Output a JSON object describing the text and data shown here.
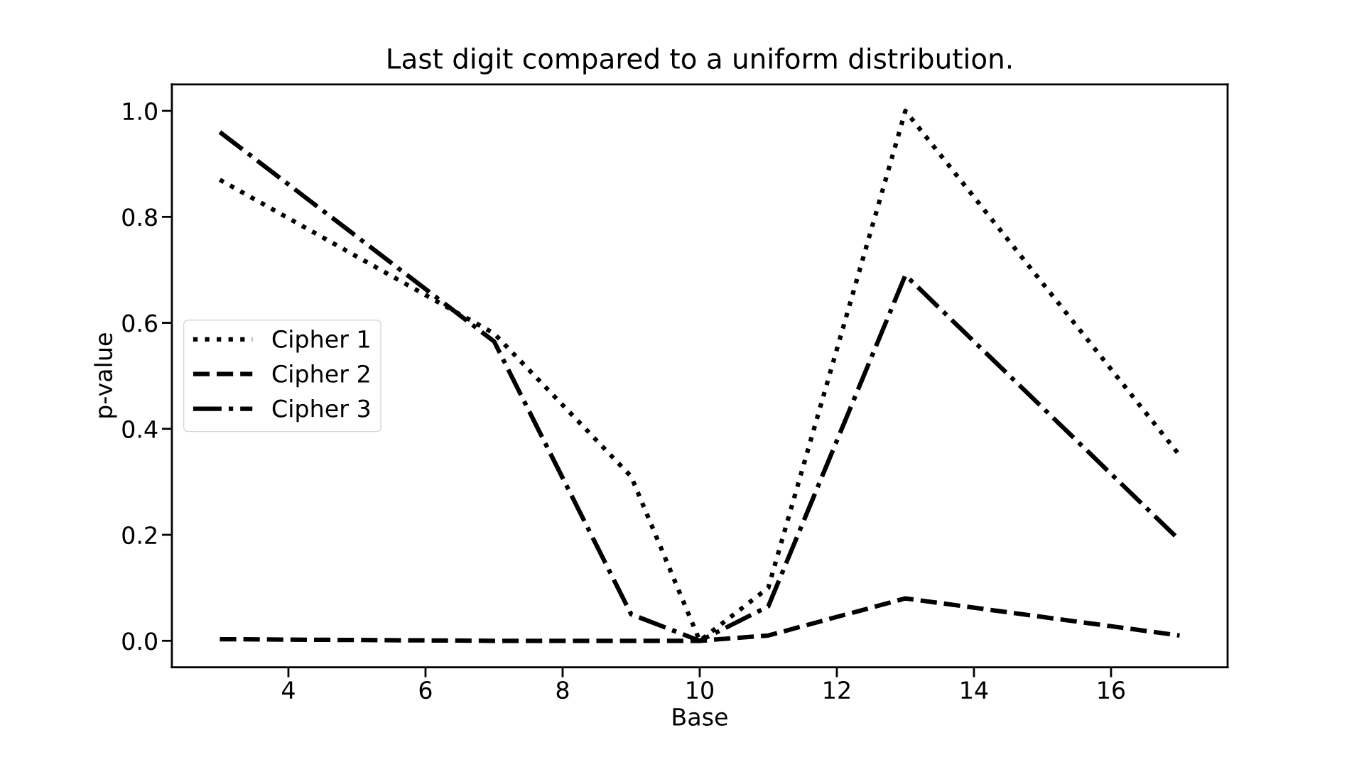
{
  "chart_data": {
    "type": "line",
    "title": "Last digit compared to a uniform distribution.",
    "xlabel": "Base",
    "ylabel": "p-value",
    "x": [
      3,
      7,
      9,
      10,
      11,
      13,
      17
    ],
    "series": [
      {
        "name": "Cipher 1",
        "color": "#000000",
        "line_style": "dotted",
        "values": [
          0.87,
          0.58,
          0.31,
          0.0,
          0.1,
          1.0,
          0.35
        ]
      },
      {
        "name": "Cipher 2",
        "color": "#000000",
        "line_style": "dashed",
        "values": [
          0.003,
          0.0,
          0.0,
          0.0,
          0.01,
          0.08,
          0.01
        ]
      },
      {
        "name": "Cipher 3",
        "color": "#000000",
        "line_style": "dashdot",
        "values": [
          0.96,
          0.565,
          0.05,
          0.0,
          0.065,
          0.69,
          0.19
        ]
      }
    ],
    "xlim": [
      2.3,
      17.7
    ],
    "ylim": [
      -0.05,
      1.05
    ],
    "xticks": [
      4,
      6,
      8,
      10,
      12,
      14,
      16
    ],
    "yticks": [
      {
        "value": 0,
        "label": "0.0"
      },
      {
        "value": 0.2,
        "label": "0.2"
      },
      {
        "value": 0.4,
        "label": "0.4"
      },
      {
        "value": 0.6,
        "label": "0.6"
      },
      {
        "value": 0.8,
        "label": "0.8"
      },
      {
        "value": 1.0,
        "label": "1.0"
      }
    ],
    "grid": false,
    "legend": "center left",
    "marker": "none"
  }
}
